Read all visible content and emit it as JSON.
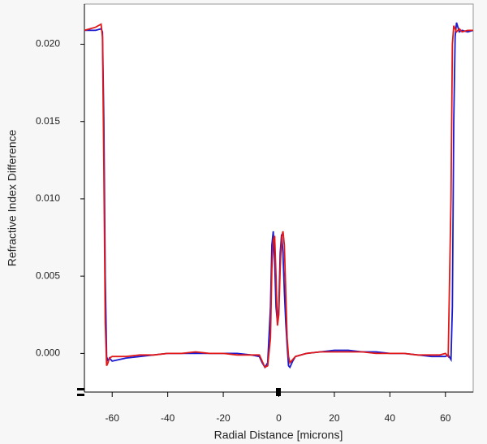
{
  "chart_data": {
    "type": "line",
    "x_label": "Radial Distance [microns]",
    "y_label": "Refractive Index Difference",
    "x": [
      -70,
      -68,
      -66,
      -64,
      -63.5,
      -63,
      -62.5,
      -62,
      -61.5,
      -61,
      -60,
      -55,
      -50,
      -45,
      -40,
      -35,
      -30,
      -25,
      -20,
      -15,
      -10,
      -7,
      -6,
      -5,
      -4,
      -3,
      -2.5,
      -2,
      -1.5,
      -1,
      -0.5,
      0,
      0.5,
      1,
      1.5,
      2,
      2.5,
      3,
      3.5,
      4,
      5,
      6,
      8,
      10,
      15,
      20,
      25,
      30,
      35,
      40,
      45,
      50,
      55,
      58,
      60,
      61,
      62,
      62.5,
      63,
      63.5,
      64,
      65,
      66,
      68,
      70
    ],
    "series": [
      {
        "color": "#1a1ad0",
        "values": [
          0.0209,
          0.0209,
          0.0209,
          0.021,
          0.0208,
          0.015,
          0.005,
          -0.0002,
          -0.0005,
          -0.0003,
          -0.0005,
          -0.0003,
          -0.0002,
          -0.0001,
          0,
          0,
          0,
          0,
          0,
          0,
          -0.0001,
          -0.0002,
          -0.0006,
          -0.0009,
          -0.0006,
          0.003,
          0.007,
          0.0079,
          0.006,
          0.003,
          0.002,
          0.003,
          0.0065,
          0.0077,
          0.0065,
          0.004,
          0.002,
          0.0005,
          -0.0008,
          -0.0009,
          -0.0005,
          -0.0002,
          -0.0001,
          0,
          0.0001,
          0.0002,
          0.0002,
          0.0001,
          0.0001,
          0,
          0,
          -0.0001,
          -0.0002,
          -0.0002,
          -0.0002,
          -0.0001,
          -0.0004,
          0.003,
          0.015,
          0.0205,
          0.0214,
          0.0208,
          0.0209,
          0.0208,
          0.0209
        ]
      },
      {
        "color": "#e01818",
        "values": [
          0.0209,
          0.021,
          0.0211,
          0.0213,
          0.0205,
          0.012,
          0.002,
          -0.0008,
          -0.0006,
          -0.0003,
          -0.0002,
          -0.0002,
          -0.0001,
          -0.0001,
          0,
          0,
          0.0001,
          0,
          0,
          -0.0001,
          -0.0001,
          -0.0001,
          -0.0005,
          -0.0009,
          -0.0008,
          0.001,
          0.0055,
          0.0073,
          0.0076,
          0.005,
          0.0018,
          0.0025,
          0.0055,
          0.0075,
          0.0079,
          0.007,
          0.004,
          0.001,
          -0.0002,
          -0.0006,
          -0.0004,
          -0.0002,
          -0.0001,
          0,
          0.0001,
          0.0001,
          0.0001,
          0.0001,
          0,
          0,
          0,
          -0.0001,
          -0.0001,
          -0.0001,
          0,
          -0.0002,
          0.01,
          0.02,
          0.0212,
          0.021,
          0.0208,
          0.021,
          0.0208,
          0.0209,
          0.0209
        ]
      }
    ],
    "xlim": [
      -70,
      70
    ],
    "xticks": [
      -60,
      -40,
      -20,
      0,
      20,
      40,
      60
    ],
    "ylim": [
      -0.0025,
      0.0226
    ],
    "yticks": [
      {
        "value": 0,
        "label": "0.000"
      },
      {
        "value": 0.005,
        "label": "0.005"
      },
      {
        "value": 0.01,
        "label": "0.010"
      },
      {
        "value": 0.015,
        "label": "0.015"
      },
      {
        "value": 0.02,
        "label": "0.020"
      }
    ],
    "grid": false
  }
}
